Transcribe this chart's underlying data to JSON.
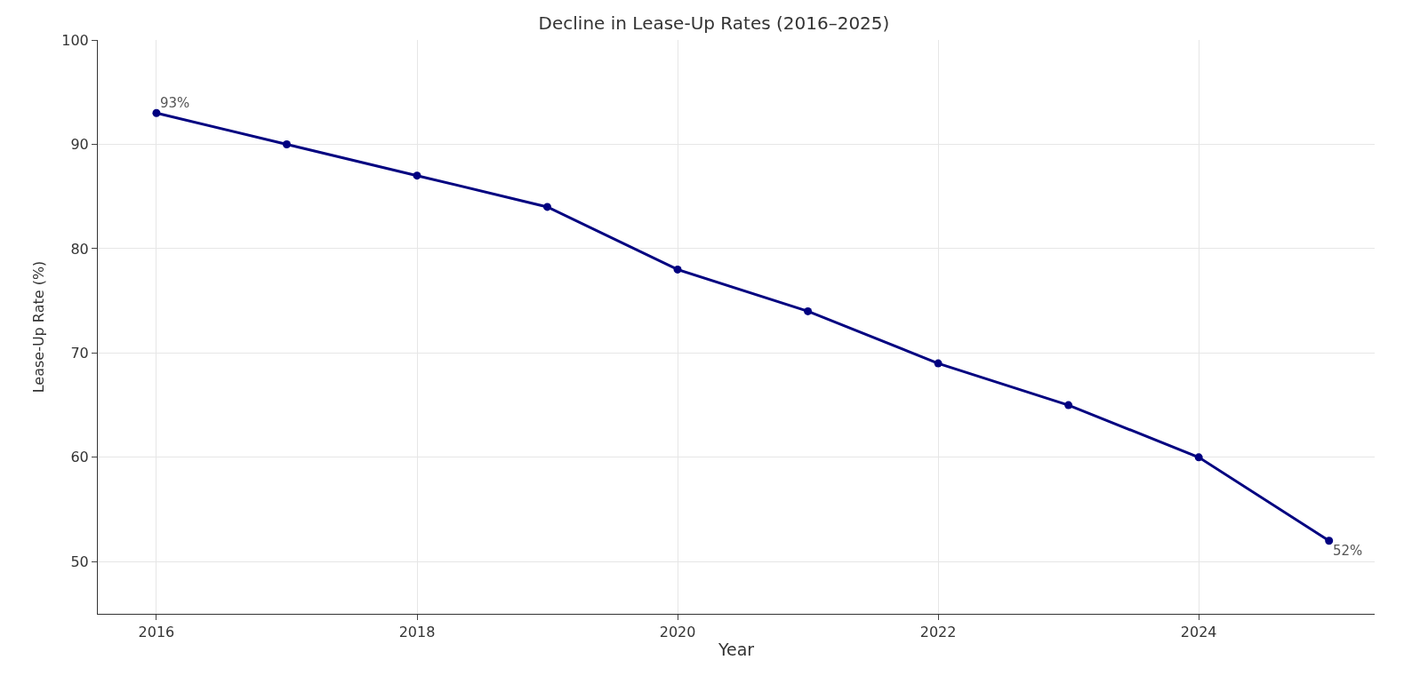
{
  "chart_data": {
    "type": "line",
    "title": "Decline in Lease-Up Rates (2016–2025)",
    "xlabel": "Year",
    "ylabel": "Lease-Up Rate (%)",
    "x": [
      2016,
      2017,
      2018,
      2019,
      2020,
      2021,
      2022,
      2023,
      2024,
      2025
    ],
    "series": [
      {
        "color": "#000080",
        "values": [
          93,
          90,
          87,
          84,
          78,
          74,
          69,
          65,
          60,
          52
        ]
      }
    ],
    "annotations": [
      {
        "text": "93%",
        "x": 2016,
        "y": 93
      },
      {
        "text": "52%",
        "x": 2025,
        "y": 52
      }
    ],
    "xlim": [
      2015.55,
      2025.35
    ],
    "xticks": [
      2016,
      2018,
      2020,
      2022,
      2024
    ],
    "ylim": [
      45,
      100
    ],
    "yticks": [
      50,
      60,
      70,
      80,
      90,
      100
    ],
    "grid": true,
    "marker": "circle",
    "line_style": "solid"
  }
}
